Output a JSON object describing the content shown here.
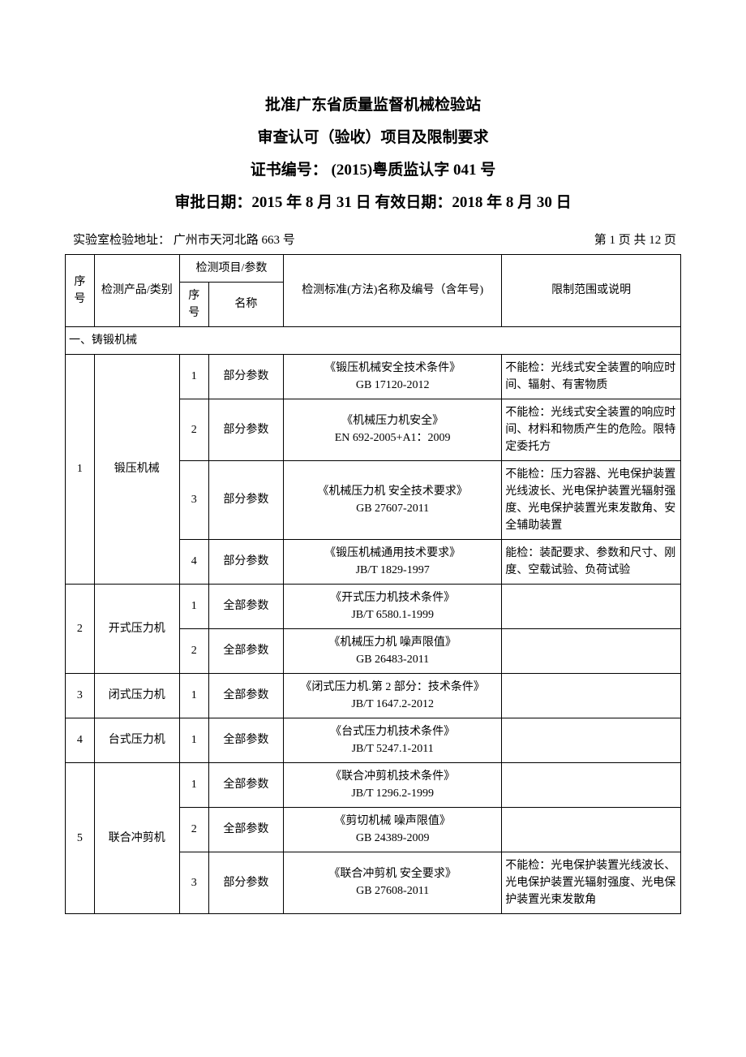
{
  "header": {
    "line1": "批准广东省质量监督机械检验站",
    "line2": "审查认可（验收）项目及限制要求",
    "line3": "证书编号：  (2015)粤质监认字 041 号",
    "line4": "审批日期：2015 年 8 月 31 日   有效日期：2018 年 8 月 30 日"
  },
  "address": {
    "label": "实验室检验地址：  广州市天河北路 663 号",
    "page": "第 1 页   共 12 页"
  },
  "columns": {
    "seq": "序号",
    "product": "检测产品/类别",
    "param_group": "检测项目/参数",
    "param_seq": "序号",
    "param_name": "名称",
    "standard": "检测标准(方法)名称及编号（含年号)",
    "limit": "限制范围或说明"
  },
  "section1": "一、铸锻机械",
  "rows": {
    "r1": {
      "seq": "1",
      "product": "锻压机械",
      "p1_seq": "1",
      "p1_name": "部分参数",
      "p1_std_a": "《锻压机械安全技术条件》",
      "p1_std_b": "GB 17120-2012",
      "p1_limit": "不能检：光线式安全装置的响应时间、辐射、有害物质",
      "p2_seq": "2",
      "p2_name": "部分参数",
      "p2_std_a": "《机械压力机安全》",
      "p2_std_b": "EN 692-2005+A1：2009",
      "p2_limit": "不能检：光线式安全装置的响应时间、材料和物质产生的危险。限特定委托方",
      "p3_seq": "3",
      "p3_name": "部分参数",
      "p3_std_a": "《机械压力机 安全技术要求》",
      "p3_std_b": "GB 27607-2011",
      "p3_limit": "不能检：压力容器、光电保护装置光线波长、光电保护装置光辐射强度、光电保护装置光束发散角、安全辅助装置",
      "p4_seq": "4",
      "p4_name": "部分参数",
      "p4_std_a": "《锻压机械通用技术要求》",
      "p4_std_b": "JB/T 1829-1997",
      "p4_limit": "能检：装配要求、参数和尺寸、刚度、空载试验、负荷试验"
    },
    "r2": {
      "seq": "2",
      "product": "开式压力机",
      "p1_seq": "1",
      "p1_name": "全部参数",
      "p1_std_a": "《开式压力机技术条件》",
      "p1_std_b": "JB/T 6580.1-1999",
      "p1_limit": "",
      "p2_seq": "2",
      "p2_name": "全部参数",
      "p2_std_a": "《机械压力机 噪声限值》",
      "p2_std_b": "GB  26483-2011",
      "p2_limit": ""
    },
    "r3": {
      "seq": "3",
      "product": "闭式压力机",
      "p1_seq": "1",
      "p1_name": "全部参数",
      "p1_std_a": "《闭式压力机.第 2 部分：技术条件》",
      "p1_std_b": "JB/T 1647.2-2012",
      "p1_limit": ""
    },
    "r4": {
      "seq": "4",
      "product": "台式压力机",
      "p1_seq": "1",
      "p1_name": "全部参数",
      "p1_std_a": "《台式压力机技术条件》",
      "p1_std_b": "JB/T 5247.1-2011",
      "p1_limit": ""
    },
    "r5": {
      "seq": "5",
      "product": "联合冲剪机",
      "p1_seq": "1",
      "p1_name": "全部参数",
      "p1_std_a": "《联合冲剪机技术条件》",
      "p1_std_b": "JB/T 1296.2-1999",
      "p1_limit": "",
      "p2_seq": "2",
      "p2_name": "全部参数",
      "p2_std_a": "《剪切机械 噪声限值》",
      "p2_std_b": "GB 24389-2009",
      "p2_limit": "",
      "p3_seq": "3",
      "p3_name": "部分参数",
      "p3_std_a": "《联合冲剪机 安全要求》",
      "p3_std_b": "GB 27608-2011",
      "p3_limit": "不能检：光电保护装置光线波长、光电保护装置光辐射强度、光电保护装置光束发散角"
    }
  }
}
